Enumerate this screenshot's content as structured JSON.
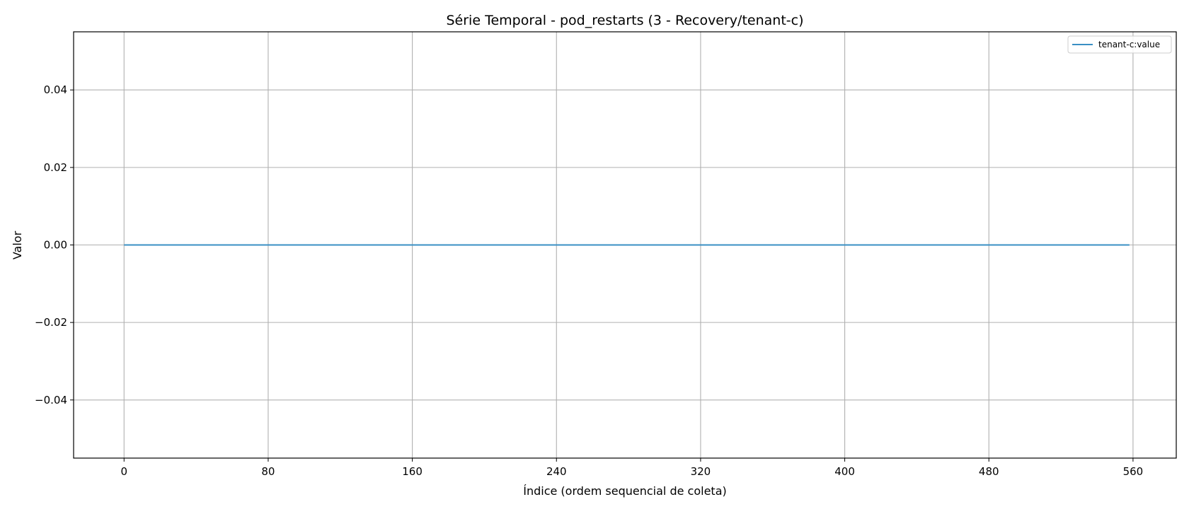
{
  "chart_data": {
    "type": "line",
    "title": "Série Temporal - pod_restarts (3 - Recovery/tenant-c)",
    "xlabel": "Índice (ordem sequencial de coleta)",
    "ylabel": "Valor",
    "xlim": [
      -28,
      584
    ],
    "ylim": [
      -0.055,
      0.055
    ],
    "xticks": [
      0,
      80,
      160,
      240,
      320,
      400,
      480,
      560
    ],
    "yticks": [
      -0.04,
      -0.02,
      0.0,
      0.02,
      0.04
    ],
    "ytick_labels": [
      "−0.04",
      "−0.02",
      "0.00",
      "0.02",
      "0.04"
    ],
    "grid": true,
    "legend_position": "top-right",
    "series": [
      {
        "name": "tenant-c:value",
        "color": "#3a8fc4",
        "x": [
          0,
          558
        ],
        "y": [
          0,
          0
        ]
      }
    ]
  }
}
